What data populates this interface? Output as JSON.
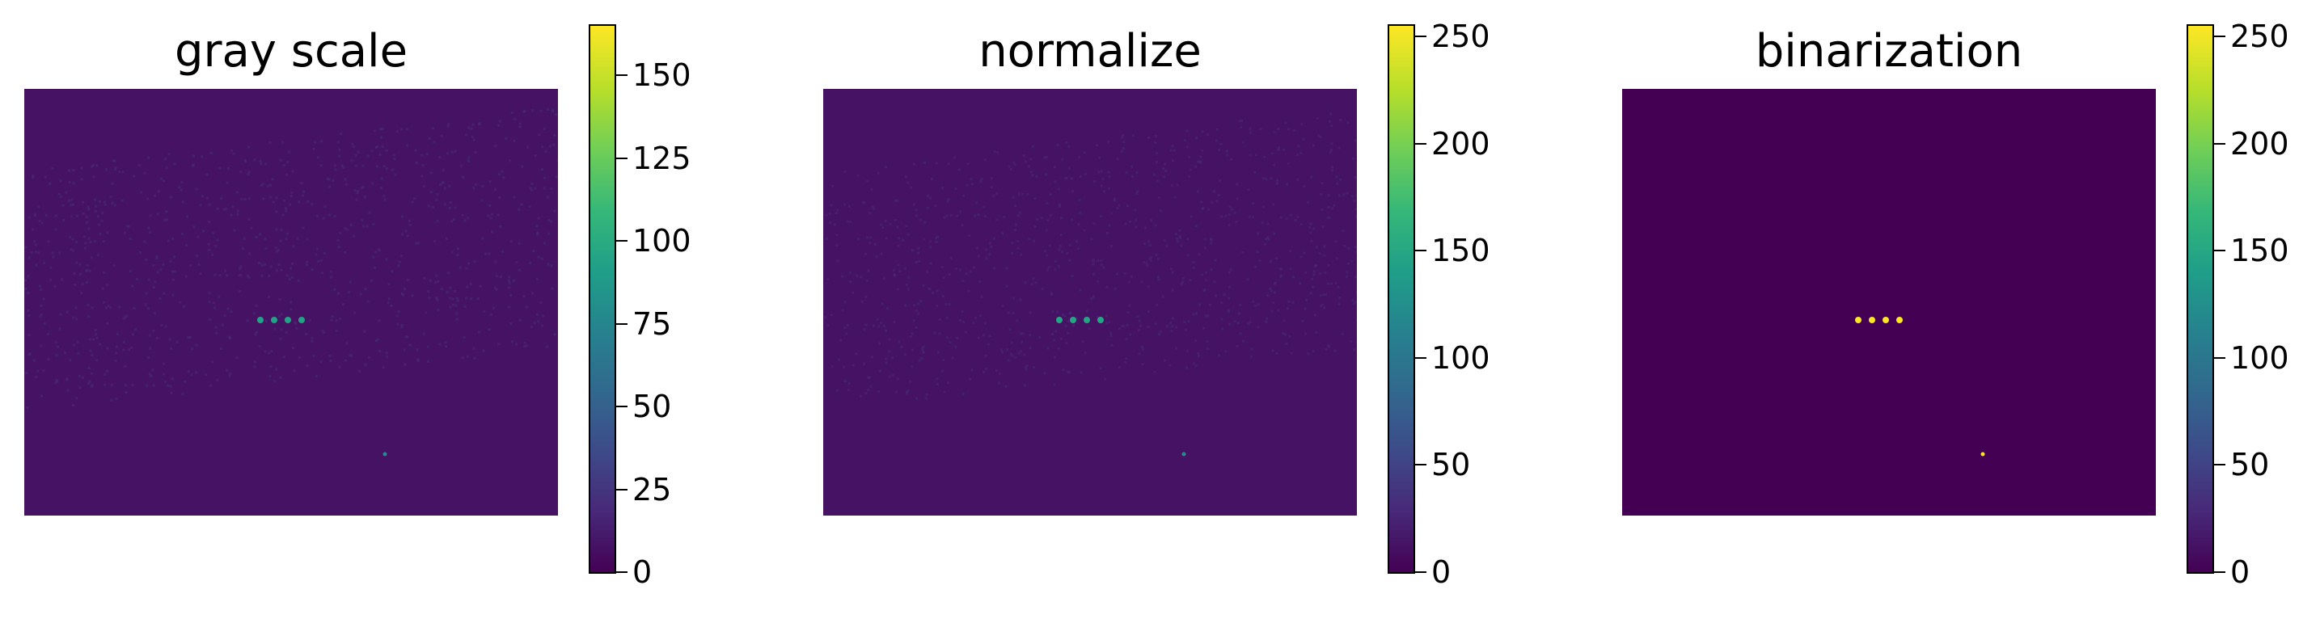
{
  "chart_data": [
    {
      "type": "heatmap",
      "title": "gray scale",
      "colormap": "viridis",
      "axes_visible": false,
      "colorbar": {
        "min": 0,
        "max": 165,
        "ticks": [
          0,
          25,
          50,
          75,
          100,
          125,
          150
        ]
      },
      "background_value": 8,
      "features": [
        {
          "kind": "spot-row",
          "count": 4,
          "value": 95
        },
        {
          "kind": "spot",
          "value": 80
        }
      ]
    },
    {
      "type": "heatmap",
      "title": "normalize",
      "colormap": "viridis",
      "axes_visible": false,
      "colorbar": {
        "min": 0,
        "max": 255,
        "ticks": [
          0,
          50,
          100,
          150,
          200,
          250
        ]
      },
      "background_value": 12,
      "features": [
        {
          "kind": "spot-row",
          "count": 4,
          "value": 150
        },
        {
          "kind": "spot",
          "value": 125
        }
      ]
    },
    {
      "type": "heatmap",
      "title": "binarization",
      "colormap": "viridis",
      "axes_visible": false,
      "colorbar": {
        "min": 0,
        "max": 255,
        "ticks": [
          0,
          50,
          100,
          150,
          200,
          250
        ]
      },
      "background_value": 0,
      "features": [
        {
          "kind": "spot-row",
          "count": 4,
          "value": 255
        },
        {
          "kind": "spot",
          "value": 255
        }
      ]
    }
  ]
}
